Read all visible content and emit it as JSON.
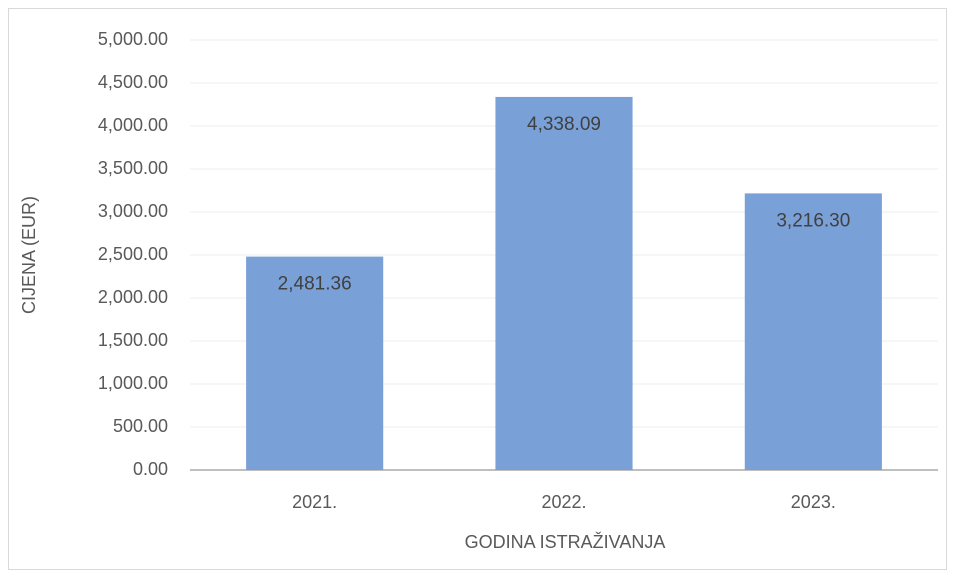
{
  "chart_data": {
    "type": "bar",
    "x_label": "GODINA ISTRAŽIVANJA",
    "y_label": "CIJENA (EUR)",
    "categories": [
      "2021.",
      "2022.",
      "2023."
    ],
    "values": [
      2481.36,
      4338.09,
      3216.3
    ],
    "value_labels": [
      "2,481.36",
      "4,338.09",
      "3,216.30"
    ],
    "color": "#7aa0d8",
    "ylim": [
      0,
      5000
    ],
    "yticks": [
      {
        "value": 0,
        "label": "0.00"
      },
      {
        "value": 500,
        "label": "500.00"
      },
      {
        "value": 1000,
        "label": "1,000.00"
      },
      {
        "value": 1500,
        "label": "1,500.00"
      },
      {
        "value": 2000,
        "label": "2,000.00"
      },
      {
        "value": 2500,
        "label": "2,500.00"
      },
      {
        "value": 3000,
        "label": "3,000.00"
      },
      {
        "value": 3500,
        "label": "3,500.00"
      },
      {
        "value": 4000,
        "label": "4,000.00"
      },
      {
        "value": 4500,
        "label": "4,500.00"
      },
      {
        "value": 5000,
        "label": "5,000.00"
      }
    ],
    "grid": true
  }
}
